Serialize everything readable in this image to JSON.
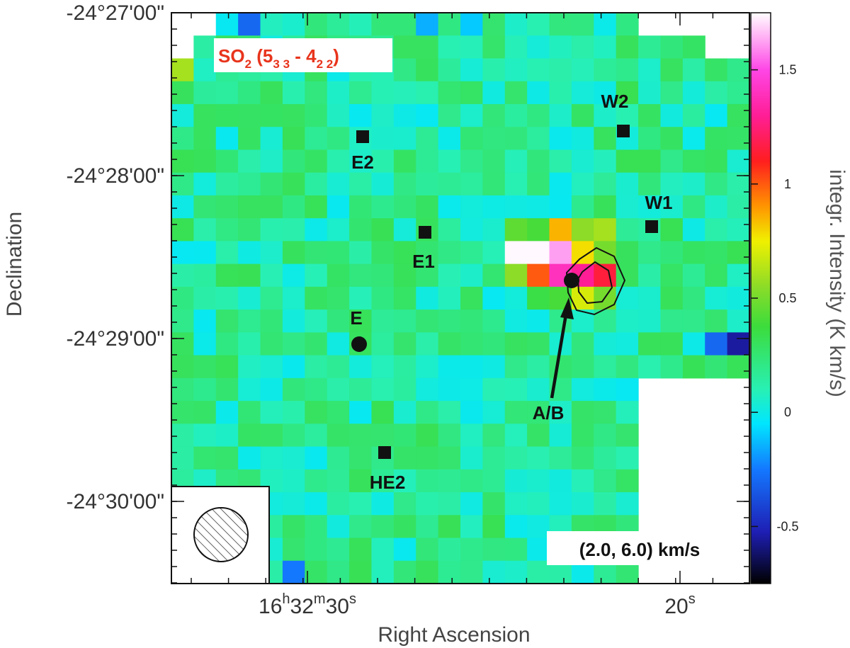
{
  "chart_data": {
    "type": "heatmap",
    "molecule_label": {
      "species": "SO",
      "sub1": "2",
      "mid": " (5",
      "sub2": "3 3",
      "dash": " - 4",
      "sub3": "2 2",
      "close": ")"
    },
    "velocity_label": "(2.0, 6.0) km/s",
    "xlabel": "Right Ascension",
    "ylabel": "Declination",
    "x_ticks": [
      {
        "h": "16",
        "m": "32",
        "s": "30",
        "value": 30
      },
      {
        "h": "",
        "m": "",
        "s": "20",
        "value": 20
      }
    ],
    "y_ticks": [
      "-24°27'00\"",
      "-24°28'00\"",
      "-24°29'00\"",
      "-24°30'00\""
    ],
    "colorbar": {
      "label": "integr. Intensity (K km/s)",
      "ticks": [
        "1.5",
        "1",
        "0.5",
        "0",
        "-0.5"
      ],
      "tick_values": [
        1.5,
        1.0,
        0.5,
        0.0,
        -0.5
      ],
      "range": [
        -0.75,
        1.75
      ]
    },
    "sources": [
      {
        "name": "W2",
        "marker": "square"
      },
      {
        "name": "E2",
        "marker": "square"
      },
      {
        "name": "W1",
        "marker": "square"
      },
      {
        "name": "E1",
        "marker": "square"
      },
      {
        "name": "E",
        "marker": "circle"
      },
      {
        "name": "A/B",
        "marker": "circle"
      },
      {
        "name": "HE2",
        "marker": "square"
      }
    ],
    "peak_values": [
      1.74,
      1.62,
      1.4,
      1.3,
      1.15,
      1.0,
      0.85,
      0.78,
      0.7,
      0.6
    ],
    "background_level": 0.15
  }
}
